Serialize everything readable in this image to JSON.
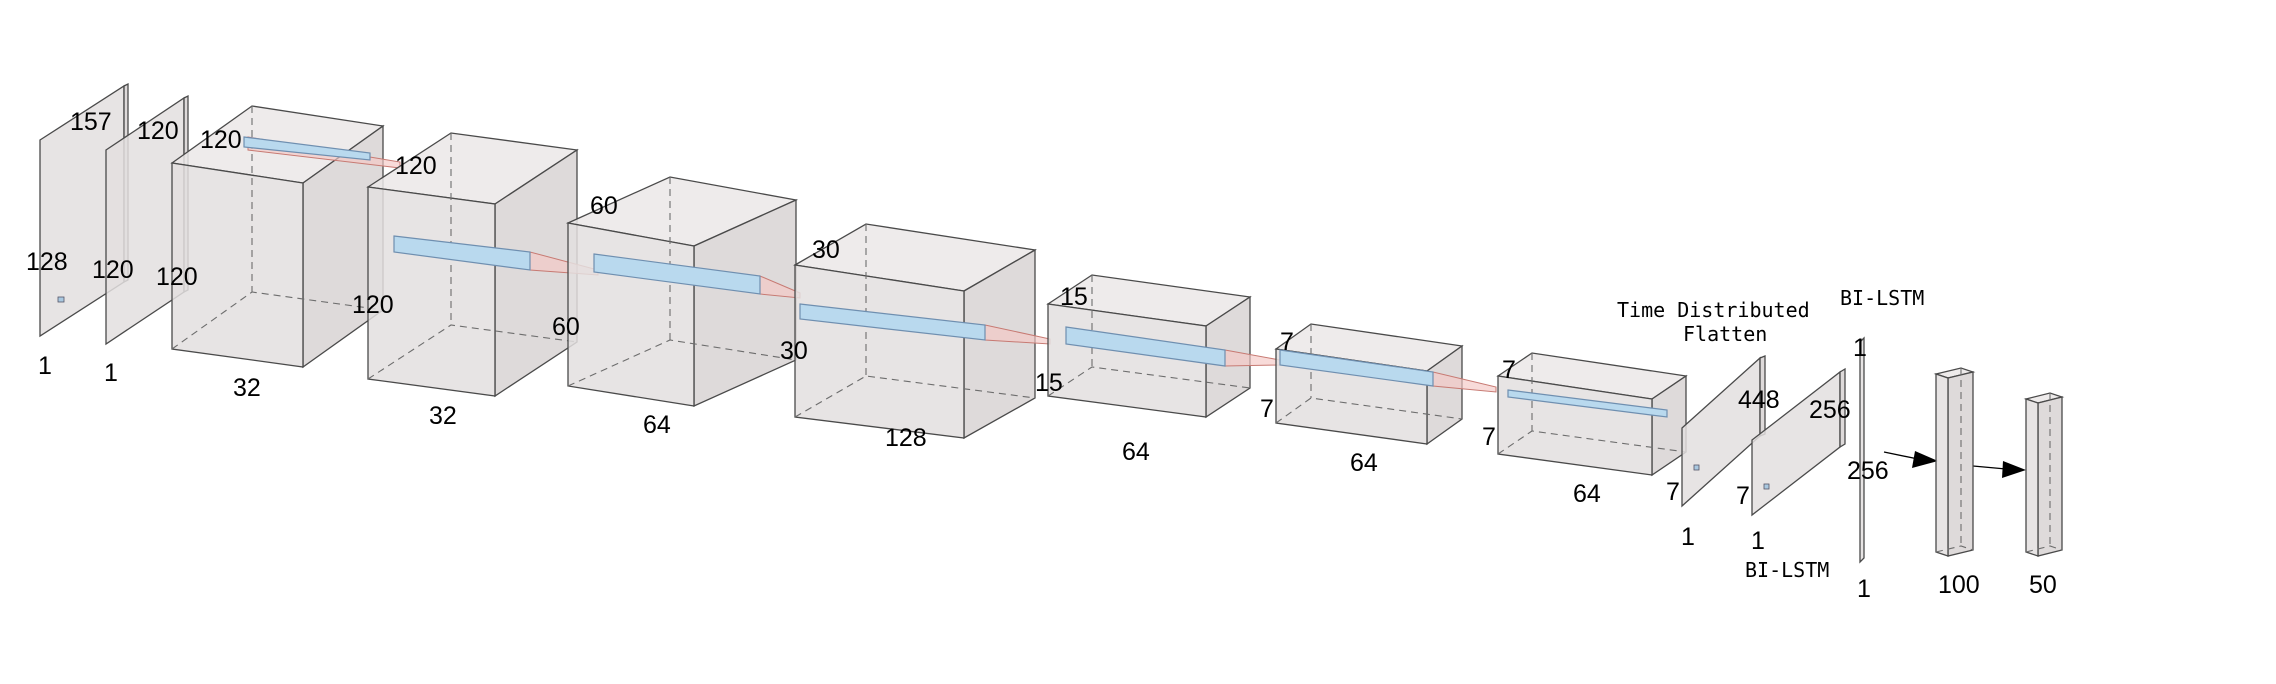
{
  "labels": {
    "input1": {
      "h": "157",
      "w": "128",
      "d": "1"
    },
    "input2": {
      "h": "120",
      "w": "120",
      "d": "1"
    },
    "conv1": {
      "h": "120",
      "w": "120",
      "d": "32"
    },
    "conv2": {
      "h": "120",
      "w": "120",
      "d": "32"
    },
    "conv3": {
      "h": "60",
      "w": "60",
      "d": "64"
    },
    "conv4": {
      "h": "30",
      "w": "30",
      "d": "128"
    },
    "conv5": {
      "h": "15",
      "w": "15",
      "d": "64"
    },
    "conv6": {
      "h": "7",
      "w": "7",
      "d": "64"
    },
    "conv7": {
      "h": "7",
      "w": "7",
      "d": "64"
    },
    "flatten1": {
      "h": "448",
      "w": "7",
      "d": "1"
    },
    "flatten2": {
      "h": "256",
      "w": "7",
      "d": "1"
    },
    "lstm": {
      "top": "1",
      "mid": "256",
      "bottom": "1"
    },
    "dense1": {
      "d": "100"
    },
    "dense2": {
      "d": "50"
    }
  },
  "annotations": {
    "time_distributed_line1": "Time Distributed",
    "time_distributed_line2": "Flatten",
    "bilstm_top": "BI-LSTM",
    "bilstm_bottom": "BI-LSTM"
  }
}
